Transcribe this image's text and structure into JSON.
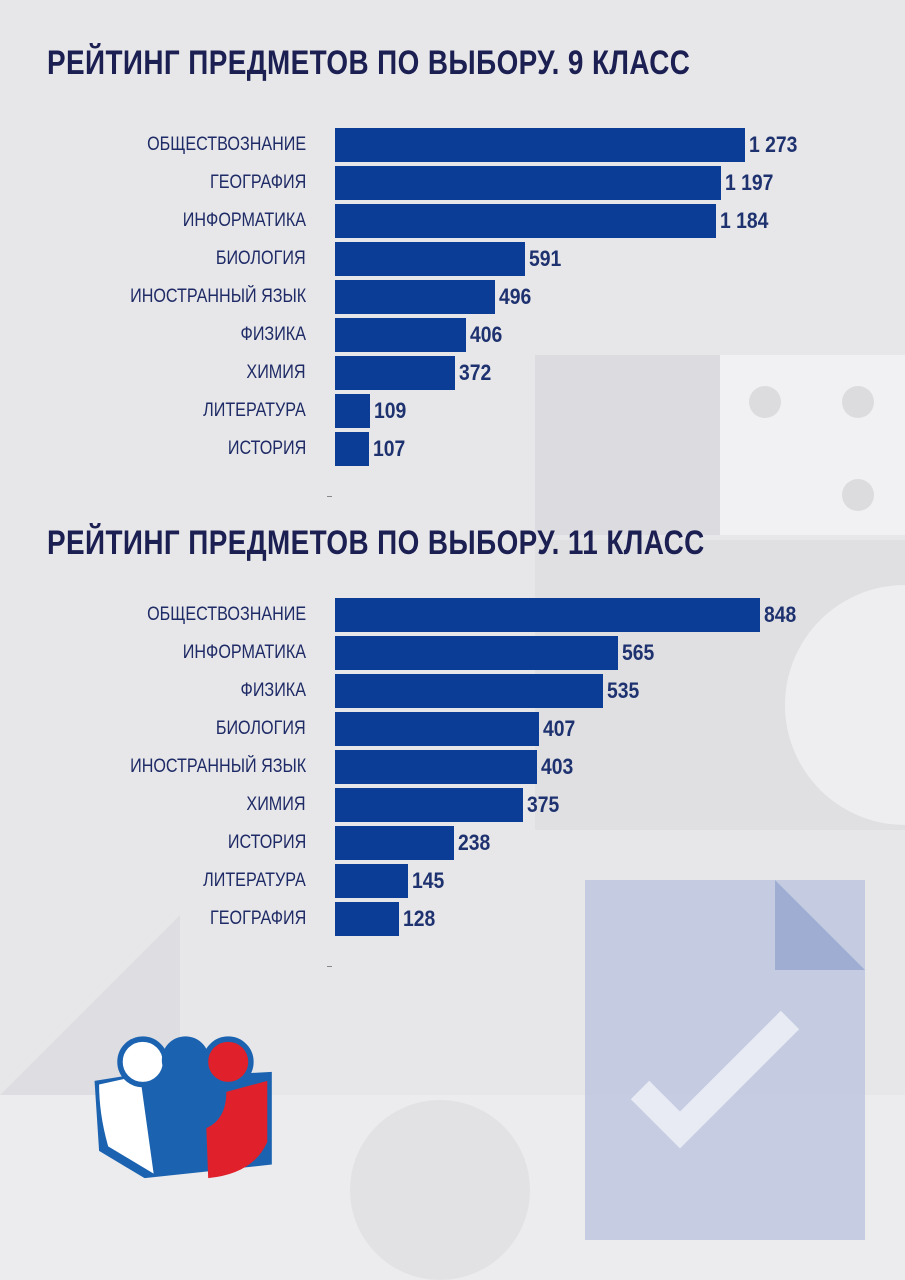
{
  "chart_data": [
    {
      "type": "bar",
      "orientation": "horizontal",
      "title": "РЕЙТИНГ ПРЕДМЕТОВ ПО ВЫБОРУ. 9 КЛАСС",
      "categories": [
        "ОБЩЕСТВОЗНАНИЕ",
        "ГЕОГРАФИЯ",
        "ИНФОРМАТИКА",
        "БИОЛОГИЯ",
        "ИНОСТРАННЫЙ ЯЗЫК",
        "ФИЗИКА",
        "ХИМИЯ",
        "ЛИТЕРАТУРА",
        "ИСТОРИЯ"
      ],
      "values": [
        1273,
        1197,
        1184,
        591,
        496,
        406,
        372,
        109,
        107
      ],
      "value_labels": [
        "1 273",
        "1 197",
        "1 184",
        "591",
        "496",
        "406",
        "372",
        "109",
        "107"
      ],
      "color": "#0b3c96"
    },
    {
      "type": "bar",
      "orientation": "horizontal",
      "title": "РЕЙТИНГ ПРЕДМЕТОВ ПО ВЫБОРУ. 11 КЛАСС",
      "categories": [
        "ОБЩЕСТВОЗНАНИЕ",
        "ИНФОРМАТИКА",
        "ФИЗИКА",
        "БИОЛОГИЯ",
        "ИНОСТРАННЫЙ ЯЗЫК",
        "ХИМИЯ",
        "ИСТОРИЯ",
        "ЛИТЕРАТУРА",
        "ГЕОГРАФИЯ"
      ],
      "values": [
        848,
        565,
        535,
        407,
        403,
        375,
        238,
        145,
        128
      ],
      "value_labels": [
        "848",
        "565",
        "535",
        "407",
        "403",
        "375",
        "238",
        "145",
        "128"
      ],
      "color": "#0b3c96"
    }
  ]
}
